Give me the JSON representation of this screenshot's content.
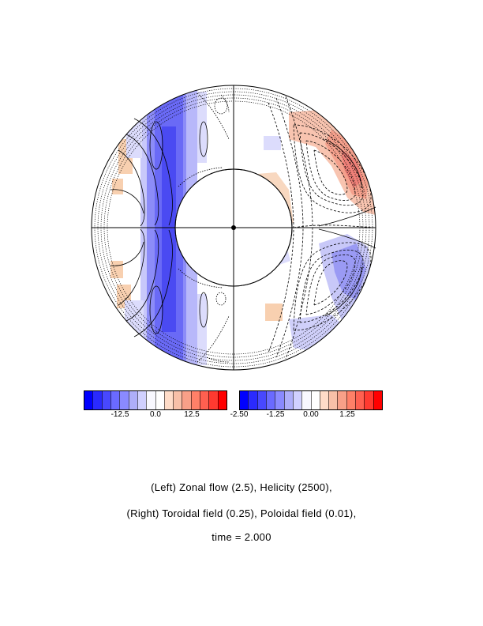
{
  "colorbars": {
    "left": {
      "colors": [
        "#0000ff",
        "#2a2aff",
        "#4848ff",
        "#6a6aff",
        "#8a8aff",
        "#aeaefa",
        "#d0d0ff",
        "#f8f8ff",
        "#ffffff",
        "#ffdcc8",
        "#f8c0a8",
        "#f8a088",
        "#ff8068",
        "#ff6050",
        "#ff3a30",
        "#ff0000"
      ],
      "ticks": [
        "-12.5",
        "0.0",
        "12.5"
      ]
    },
    "right": {
      "colors": [
        "#0000ff",
        "#2a2aff",
        "#4848ff",
        "#6a6aff",
        "#8a8aff",
        "#aeaefa",
        "#d0d0ff",
        "#f8f8ff",
        "#ffffff",
        "#ffdcc8",
        "#f8c0a8",
        "#f8a088",
        "#ff8068",
        "#ff6050",
        "#ff3a30",
        "#ff0000"
      ],
      "ticks": [
        "-2.50",
        "-1.25",
        "0.00",
        "1.25"
      ]
    }
  },
  "caption": {
    "line1": "(Left) Zonal flow (2.5), Helicity (2500),",
    "line2": "(Right) Toroidal field (0.25), Poloidal field (0.01),",
    "line3": "time = 2.000"
  }
}
